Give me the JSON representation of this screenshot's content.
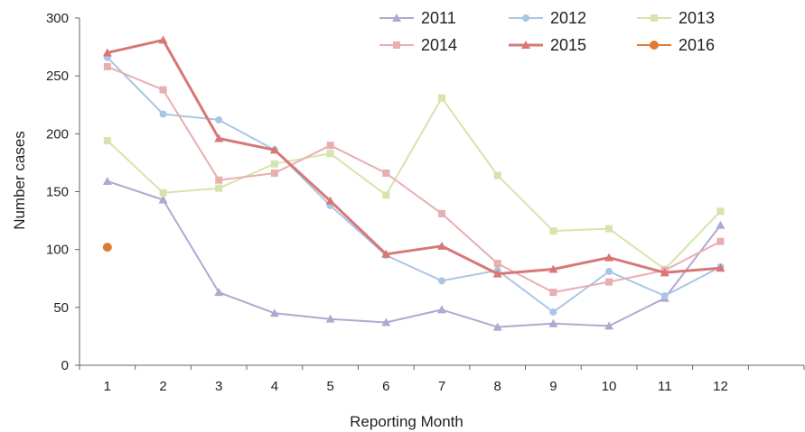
{
  "chart_data": {
    "type": "line",
    "title": "",
    "xlabel": "Reporting Month",
    "ylabel": "Number cases",
    "ylim": [
      0,
      300
    ],
    "yticks": [
      0,
      50,
      100,
      150,
      200,
      250,
      300
    ],
    "x": [
      "1",
      "2",
      "3",
      "4",
      "5",
      "6",
      "7",
      "8",
      "9",
      "10",
      "11",
      "12"
    ],
    "grid": false,
    "legend": "top-right",
    "series": [
      {
        "name": "2011",
        "color": "#b1a8d0",
        "marker": "triangle",
        "values": [
          159,
          143,
          63,
          45,
          40,
          37,
          48,
          33,
          36,
          34,
          58,
          121
        ]
      },
      {
        "name": "2012",
        "color": "#aac6e4",
        "marker": "circle",
        "values": [
          266,
          217,
          212,
          186,
          138,
          95,
          73,
          82,
          46,
          81,
          60,
          85
        ]
      },
      {
        "name": "2013",
        "color": "#d5e4ad",
        "marker": "square",
        "values": [
          194,
          149,
          153,
          174,
          183,
          147,
          231,
          164,
          116,
          118,
          83,
          133
        ]
      },
      {
        "name": "2014",
        "color": "#e9aeb0",
        "marker": "square",
        "values": [
          258,
          238,
          160,
          166,
          190,
          166,
          131,
          88,
          63,
          72,
          82,
          107
        ]
      },
      {
        "name": "2015",
        "color": "#d77877",
        "marker": "triangle",
        "values": [
          270,
          281,
          196,
          186,
          142,
          96,
          103,
          79,
          83,
          93,
          80,
          84
        ]
      },
      {
        "name": "2016",
        "color": "#e07b33",
        "marker": "circle",
        "values": [
          102,
          null,
          null,
          null,
          null,
          null,
          null,
          null,
          null,
          null,
          null,
          null
        ]
      }
    ]
  }
}
